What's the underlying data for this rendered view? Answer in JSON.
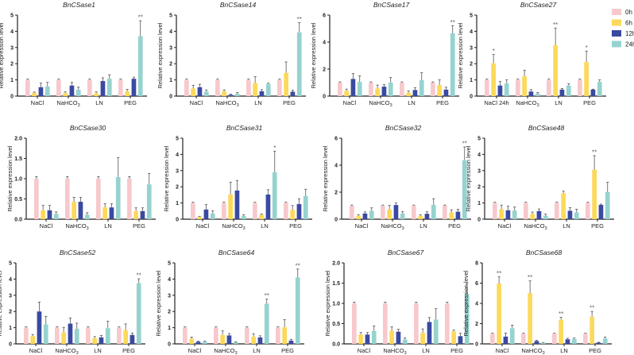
{
  "chart_data": {
    "type": "bar",
    "ylabel": "Relative expression level",
    "legend": {
      "placement": "top-right",
      "entries": [
        "0h",
        "6h",
        "12h",
        "24h"
      ]
    },
    "series_colors": [
      "#f7c9cc",
      "#fcd95a",
      "#3a4aa0",
      "#96d3cf"
    ],
    "charts": [
      {
        "title": "BnCSase1",
        "categories": [
          "NaCl",
          "NaHCO3",
          "LN",
          "PEG"
        ],
        "ylim": [
          0,
          5
        ],
        "ticks": [
          "0",
          "1",
          "2",
          "3",
          "4",
          "5"
        ],
        "values": [
          [
            1,
            0.2,
            0.55,
            0.6
          ],
          [
            1,
            0.18,
            0.65,
            0.4
          ],
          [
            1,
            0.18,
            0.93,
            1.07
          ],
          [
            1,
            0.3,
            1.07,
            3.7
          ]
        ],
        "errors": [
          [
            0.05,
            0.05,
            0.25,
            0.25
          ],
          [
            0.05,
            0.08,
            0.2,
            0.15
          ],
          [
            0.05,
            0.08,
            0.2,
            0.25
          ],
          [
            0.05,
            0.12,
            0.1,
            0.95
          ]
        ],
        "significance": [
          [
            3,
            3,
            "**"
          ]
        ]
      },
      {
        "title": "BnCSase14",
        "categories": [
          "NaCl",
          "NaHCO3",
          "LN",
          "PEG"
        ],
        "ylim": [
          0,
          5
        ],
        "ticks": [
          "0",
          "1",
          "2",
          "3",
          "4",
          "5"
        ],
        "values": [
          [
            1,
            0.47,
            0.55,
            0.28
          ],
          [
            1,
            0.3,
            0.08,
            0.15
          ],
          [
            1,
            0.8,
            0.3,
            0.75
          ],
          [
            1,
            1.43,
            0.27,
            3.93
          ]
        ],
        "errors": [
          [
            0.05,
            0.2,
            0.18,
            0.1
          ],
          [
            0.05,
            0.08,
            0.04,
            0.07
          ],
          [
            0.05,
            0.4,
            0.1,
            0.05
          ],
          [
            0.05,
            0.68,
            0.1,
            0.6
          ]
        ],
        "significance": [
          [
            3,
            3,
            "**"
          ]
        ]
      },
      {
        "title": "BnCSase17",
        "categories": [
          "NaCl",
          "NaHCO3",
          "LN",
          "PEG"
        ],
        "ylim": [
          0,
          6
        ],
        "ticks": [
          "0",
          "2",
          "4",
          "6"
        ],
        "values": [
          [
            1,
            0.4,
            1.27,
            1.05
          ],
          [
            1,
            0.57,
            0.7,
            1
          ],
          [
            1,
            0.25,
            0.45,
            1.18
          ],
          [
            1,
            0.82,
            0.48,
            4.65
          ]
        ],
        "errors": [
          [
            0.05,
            0.12,
            0.4,
            0.45
          ],
          [
            0.05,
            0.25,
            0.15,
            0.38
          ],
          [
            0.05,
            0.12,
            0.17,
            0.55
          ],
          [
            0.05,
            0.38,
            0.18,
            0.57
          ]
        ],
        "significance": [
          [
            3,
            3,
            "**"
          ]
        ]
      },
      {
        "title": "BnCSase27",
        "categories": [
          "NaCl 24h",
          "NaHCO3",
          "LN",
          "PEG"
        ],
        "ylim": [
          0,
          5
        ],
        "ticks": [
          "0",
          "1",
          "2",
          "3",
          "4",
          "5"
        ],
        "values": [
          [
            1,
            2.02,
            0.65,
            0.78
          ],
          [
            1,
            1.22,
            0.28,
            0.16
          ],
          [
            1,
            3.15,
            0.4,
            0.65
          ],
          [
            1,
            2.1,
            0.4,
            0.88
          ]
        ],
        "errors": [
          [
            0.05,
            0.55,
            0.25,
            0.22
          ],
          [
            0.05,
            0.38,
            0.12,
            0.06
          ],
          [
            0.05,
            1.05,
            0.07,
            0.12
          ],
          [
            0.05,
            0.68,
            0.03,
            0.12
          ]
        ],
        "significance": [
          [
            0,
            1,
            "*"
          ],
          [
            2,
            1,
            "**"
          ],
          [
            3,
            1,
            "*"
          ]
        ]
      },
      {
        "title": "BnCSase30",
        "categories": [
          "NaCl",
          "NaHCO3",
          "LN",
          "PEG"
        ],
        "ylim": [
          0,
          2
        ],
        "ticks": [
          "0.0",
          "0.5",
          "1.0",
          "1.5",
          "2.0"
        ],
        "values": [
          [
            1,
            0.22,
            0.22,
            0.13
          ],
          [
            1,
            0.43,
            0.43,
            0.11
          ],
          [
            1,
            0.29,
            0.29,
            1.04
          ],
          [
            1,
            0.2,
            0.2,
            0.86
          ]
        ],
        "errors": [
          [
            0.05,
            0.12,
            0.12,
            0.05
          ],
          [
            0.05,
            0.11,
            0.11,
            0.05
          ],
          [
            0.05,
            0.09,
            0.09,
            0.48
          ],
          [
            0.05,
            0.08,
            0.08,
            0.27
          ]
        ],
        "significance": []
      },
      {
        "title": "BnCSase31",
        "categories": [
          "NaCl",
          "NaHCO3",
          "LN",
          "PEG"
        ],
        "ylim": [
          0,
          5
        ],
        "ticks": [
          "0",
          "1",
          "2",
          "3",
          "4",
          "5"
        ],
        "values": [
          [
            1,
            0.15,
            0.6,
            0.35
          ],
          [
            1,
            1.53,
            1.77,
            0.2
          ],
          [
            1,
            0.27,
            1.52,
            2.9
          ],
          [
            1,
            0.57,
            0.93,
            1.43
          ]
        ],
        "errors": [
          [
            0.05,
            0.03,
            0.3,
            0.17
          ],
          [
            0.05,
            0.75,
            0.62,
            0.08
          ],
          [
            0.05,
            0.05,
            0.3,
            1.3
          ],
          [
            0.05,
            0.27,
            0.33,
            0.42
          ]
        ],
        "significance": [
          [
            2,
            3,
            "*"
          ]
        ]
      },
      {
        "title": "BnCSase32",
        "categories": [
          "NaCl",
          "NaHCO3",
          "LN",
          "PEG"
        ],
        "ylim": [
          0,
          6
        ],
        "ticks": [
          "0",
          "2",
          "4",
          "6"
        ],
        "values": [
          [
            1,
            0.25,
            0.42,
            0.62
          ],
          [
            1,
            0.72,
            1.05,
            0.42
          ],
          [
            1,
            0.25,
            0.4,
            1.07
          ],
          [
            1,
            0.5,
            0.55,
            4.37
          ]
        ],
        "errors": [
          [
            0.05,
            0.08,
            0.12,
            0.22
          ],
          [
            0.05,
            0.3,
            0.15,
            0.15
          ],
          [
            0.05,
            0.08,
            0.15,
            0.45
          ],
          [
            0.05,
            0.2,
            0.18,
            0.98
          ]
        ],
        "significance": [
          [
            3,
            3,
            "**"
          ]
        ]
      },
      {
        "title": "BnCSase48",
        "categories": [
          "NaCl",
          "NaHCO3",
          "LN",
          "PEG"
        ],
        "ylim": [
          0,
          5
        ],
        "ticks": [
          "0",
          "1",
          "2",
          "3",
          "4",
          "5"
        ],
        "values": [
          [
            1,
            0.62,
            0.55,
            0.53
          ],
          [
            1,
            0.32,
            0.5,
            0.22
          ],
          [
            1,
            1.6,
            0.52,
            0.42
          ],
          [
            1,
            3.05,
            0.88,
            1.68
          ]
        ],
        "errors": [
          [
            0.05,
            0.25,
            0.25,
            0.22
          ],
          [
            0.05,
            0.12,
            0.13,
            0.1
          ],
          [
            0.05,
            0.13,
            0.2,
            0.2
          ],
          [
            0.05,
            0.87,
            0.05,
            0.6
          ]
        ],
        "significance": [
          [
            3,
            1,
            "**"
          ]
        ]
      },
      {
        "title": "BnCSase52",
        "categories": [
          "NaCl",
          "NaHCO3",
          "LN",
          "PEG"
        ],
        "ylim": [
          0,
          5
        ],
        "ticks": [
          "0",
          "1",
          "2",
          "3",
          "4",
          "5"
        ],
        "values": [
          [
            1,
            0.48,
            2,
            1.2
          ],
          [
            1,
            0.7,
            1.25,
            0.93
          ],
          [
            1,
            0.35,
            0.4,
            0.97
          ],
          [
            1,
            0.85,
            0.55,
            3.75
          ]
        ],
        "errors": [
          [
            0.05,
            0.1,
            0.58,
            0.5
          ],
          [
            0.05,
            0.32,
            0.35,
            0.35
          ],
          [
            0.05,
            0.1,
            0.12,
            0.43
          ],
          [
            0.05,
            0.38,
            0.12,
            0.27
          ]
        ],
        "significance": [
          [
            3,
            3,
            "**"
          ]
        ]
      },
      {
        "title": "BnCSase64",
        "categories": [
          "NaCl",
          "NaHCO3",
          "LN",
          "PEG"
        ],
        "ylim": [
          0,
          5
        ],
        "ticks": [
          "0",
          "1",
          "2",
          "3",
          "4",
          "5"
        ],
        "values": [
          [
            1,
            0.32,
            0.13,
            0.13
          ],
          [
            1,
            0.55,
            0.52,
            0.1
          ],
          [
            1,
            0.45,
            0.4,
            2.48
          ],
          [
            1,
            1.02,
            0.2,
            4.1
          ]
        ],
        "errors": [
          [
            0.05,
            0.1,
            0.04,
            0.04
          ],
          [
            0.05,
            0.25,
            0.12,
            0.03
          ],
          [
            0.05,
            0.18,
            0.1,
            0.28
          ],
          [
            0.05,
            0.48,
            0.08,
            0.52
          ]
        ],
        "significance": [
          [
            2,
            3,
            "**"
          ],
          [
            3,
            3,
            "**"
          ]
        ]
      },
      {
        "title": "BnCSase67",
        "categories": [
          "NaCl",
          "NaHCO3",
          "LN",
          "PEG"
        ],
        "ylim": [
          0,
          2
        ],
        "ticks": [
          "0.0",
          "0.5",
          "1.0",
          "1.5",
          "2.0"
        ],
        "values": [
          [
            1,
            0.23,
            0.23,
            0.32
          ],
          [
            1,
            0.32,
            0.3,
            0.11
          ],
          [
            1,
            0.27,
            0.54,
            0.6
          ],
          [
            1,
            0.31,
            0.19,
            1.23
          ]
        ],
        "errors": [
          [
            0.03,
            0.05,
            0.05,
            0.12
          ],
          [
            0.03,
            0.1,
            0.06,
            0.04
          ],
          [
            0.03,
            0.1,
            0.11,
            0.27
          ],
          [
            0.03,
            0.03,
            0.07,
            0.27
          ]
        ],
        "significance": []
      },
      {
        "title": "BnCSase68",
        "categories": [
          "NaCl",
          "NaHCO3",
          "LN",
          "PEG"
        ],
        "ylim": [
          0,
          8
        ],
        "ticks": [
          "0",
          "2",
          "4",
          "6",
          "8"
        ],
        "values": [
          [
            1,
            5.97,
            0.72,
            1.55
          ],
          [
            1,
            5.02,
            0.28,
            0.1
          ],
          [
            1,
            2.38,
            0.45,
            0.48
          ],
          [
            1,
            2.68,
            0.12,
            0.53
          ]
        ],
        "errors": [
          [
            0.05,
            0.65,
            0.35,
            0.3
          ],
          [
            0.05,
            1.2,
            0.07,
            0.04
          ],
          [
            0.05,
            0.25,
            0.1,
            0.1
          ],
          [
            0.05,
            0.52,
            0.04,
            0.15
          ]
        ],
        "significance": [
          [
            0,
            1,
            "**"
          ],
          [
            1,
            1,
            "**"
          ],
          [
            2,
            1,
            "**"
          ],
          [
            3,
            1,
            "**"
          ]
        ]
      }
    ]
  }
}
